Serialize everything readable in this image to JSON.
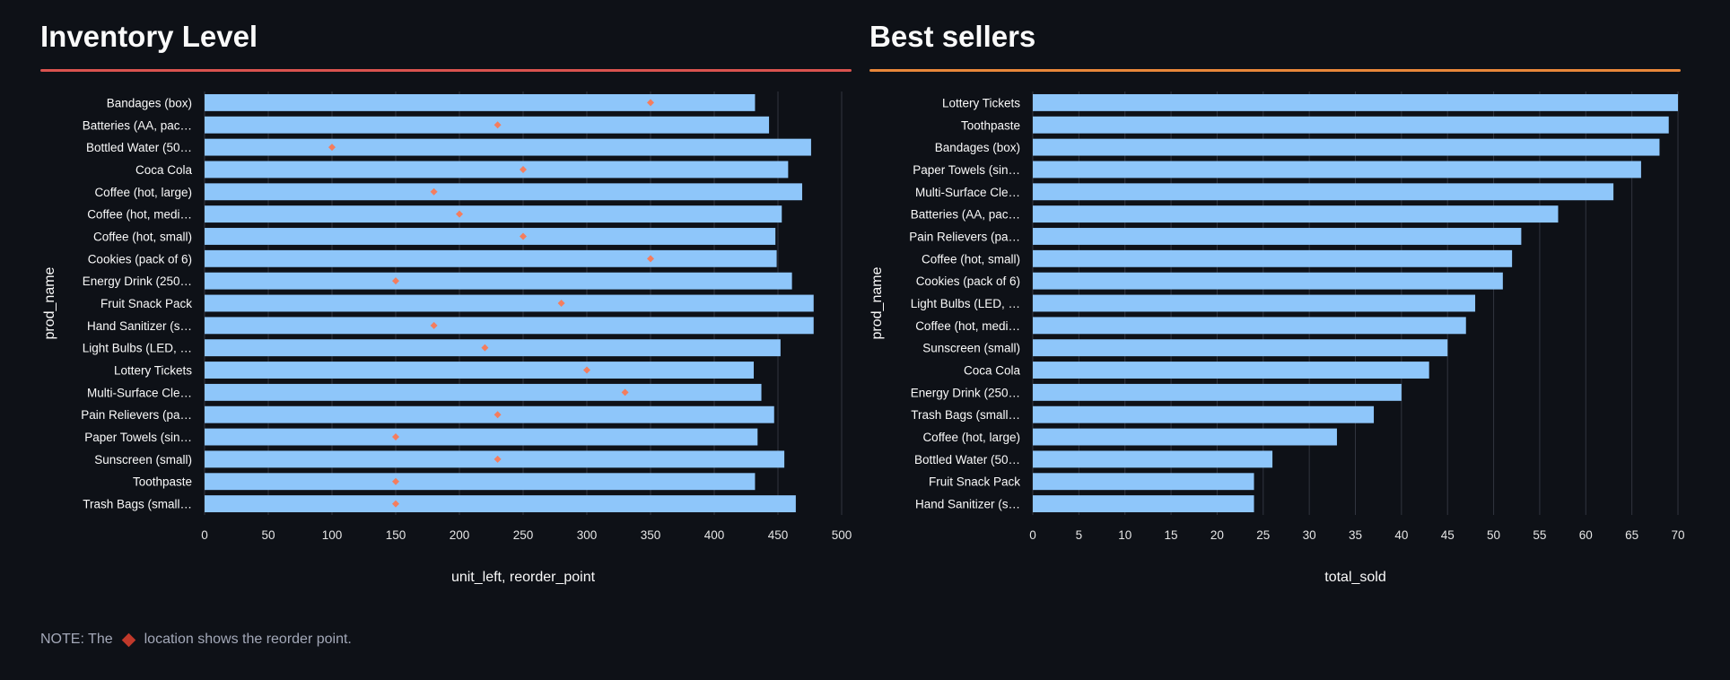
{
  "panels": {
    "inventory": {
      "title": "Inventory Level",
      "divider_color": "#d9534f"
    },
    "bestsellers": {
      "title": "Best sellers",
      "divider_color": "#e8873a"
    }
  },
  "note": {
    "prefix": "NOTE: The",
    "suffix": "location shows the reorder point.",
    "icon": "diamond-icon"
  },
  "colors": {
    "bar": "#8ec6fa",
    "marker": "#f47d5e",
    "grid": "#31353f",
    "text": "#fafafa",
    "axis_text": "#e6e6e6"
  },
  "chart_data": [
    {
      "type": "bar",
      "orientation": "horizontal",
      "xlabel": "unit_left, reorder_point",
      "ylabel": "prod_name",
      "xlim": [
        0,
        500
      ],
      "xticks": [
        0,
        50,
        100,
        150,
        200,
        250,
        300,
        350,
        400,
        450,
        500
      ],
      "grid": true,
      "categories": [
        "Bandages (box)",
        "Batteries (AA, pac…",
        "Bottled Water (50…",
        "Coca Cola",
        "Coffee (hot, large)",
        "Coffee (hot, medi…",
        "Coffee (hot, small)",
        "Cookies (pack of 6)",
        "Energy Drink (250…",
        "Fruit Snack Pack",
        "Hand Sanitizer (s…",
        "Light Bulbs (LED, …",
        "Lottery Tickets",
        "Multi-Surface Cle…",
        "Pain Relievers (pa…",
        "Paper Towels (sin…",
        "Sunscreen (small)",
        "Toothpaste",
        "Trash Bags (small…"
      ],
      "series": [
        {
          "values": [
            432,
            443,
            476,
            458,
            469,
            453,
            448,
            449,
            461,
            478,
            478,
            452,
            431,
            437,
            447,
            434,
            455,
            432,
            464
          ]
        },
        {
          "marker": "diamond",
          "values": [
            350,
            230,
            100,
            250,
            180,
            200,
            250,
            350,
            150,
            280,
            180,
            220,
            300,
            330,
            230,
            150,
            230,
            150,
            150
          ]
        }
      ]
    },
    {
      "type": "bar",
      "orientation": "horizontal",
      "xlabel": "total_sold",
      "ylabel": "prod_name",
      "xlim": [
        0,
        70
      ],
      "xticks": [
        0,
        5,
        10,
        15,
        20,
        25,
        30,
        35,
        40,
        45,
        50,
        55,
        60,
        65,
        70
      ],
      "grid": true,
      "categories": [
        "Lottery Tickets",
        "Toothpaste",
        "Bandages (box)",
        "Paper Towels (sin…",
        "Multi-Surface Cle…",
        "Batteries (AA, pac…",
        "Pain Relievers (pa…",
        "Coffee (hot, small)",
        "Cookies (pack of 6)",
        "Light Bulbs (LED, …",
        "Coffee (hot, medi…",
        "Sunscreen (small)",
        "Coca Cola",
        "Energy Drink (250…",
        "Trash Bags (small…",
        "Coffee (hot, large)",
        "Bottled Water (50…",
        "Fruit Snack Pack",
        "Hand Sanitizer (s…"
      ],
      "series": [
        {
          "values": [
            70,
            69,
            68,
            66,
            63,
            57,
            53,
            52,
            51,
            48,
            47,
            45,
            43,
            40,
            37,
            33,
            26,
            24,
            24
          ]
        }
      ]
    }
  ]
}
